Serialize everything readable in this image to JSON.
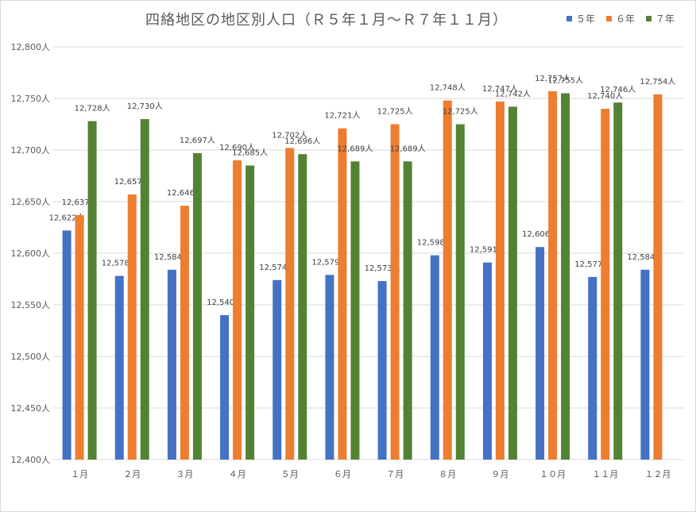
{
  "chart_data": {
    "type": "bar",
    "title": "四絡地区の地区別人口（Ｒ５年１月～Ｒ７年１１月）",
    "categories": [
      "１月",
      "２月",
      "３月",
      "４月",
      "５月",
      "６月",
      "７月",
      "８月",
      "９月",
      "１０月",
      "１１月",
      "１２月"
    ],
    "series": [
      {
        "name": "５年",
        "color": "#4472c4",
        "values": [
          12622,
          12578,
          12584,
          12540,
          12574,
          12579,
          12573,
          12598,
          12591,
          12606,
          12577,
          12584
        ]
      },
      {
        "name": "６年",
        "color": "#ed7d31",
        "values": [
          12637,
          12657,
          12646,
          12690,
          12702,
          12721,
          12725,
          12748,
          12747,
          12757,
          12740,
          12754
        ]
      },
      {
        "name": "７年",
        "color": "#548235",
        "values": [
          12728,
          12730,
          12697,
          12685,
          12696,
          12689,
          12689,
          12725,
          12742,
          12755,
          12746,
          null
        ]
      }
    ],
    "ylim": [
      12400,
      12800
    ],
    "yticks": [
      12400,
      12450,
      12500,
      12550,
      12600,
      12650,
      12700,
      12750,
      12800
    ],
    "unit": "人",
    "grid": true,
    "legend_position": "top-right"
  }
}
